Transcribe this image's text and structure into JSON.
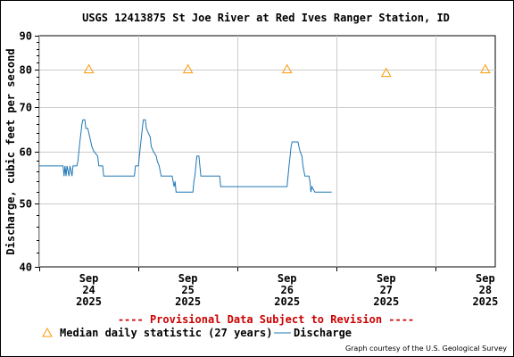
{
  "chart_data": {
    "type": "line",
    "title": "USGS 12413875 St Joe River at Red Ives Ranger Station, ID",
    "ylabel": "Discharge, cubic feet per second",
    "xlabel": "",
    "y_scale": "log",
    "ylim": [
      40,
      90
    ],
    "y_ticks": [
      40,
      50,
      60,
      70,
      80,
      90
    ],
    "y_tick_labels": [
      "40",
      "50",
      "60",
      "70",
      "80",
      "90"
    ],
    "x_range_days": [
      -0.5,
      4.1
    ],
    "x_ticks": [
      {
        "day": 0,
        "lines": [
          "Sep",
          "24",
          "2025"
        ]
      },
      {
        "day": 1,
        "lines": [
          "Sep",
          "25",
          "2025"
        ]
      },
      {
        "day": 2,
        "lines": [
          "Sep",
          "26",
          "2025"
        ]
      },
      {
        "day": 3,
        "lines": [
          "Sep",
          "27",
          "2025"
        ]
      },
      {
        "day": 4,
        "lines": [
          "Sep",
          "28",
          "2025"
        ]
      }
    ],
    "grid": true,
    "colors": {
      "discharge": "#1f77b4",
      "median": "#ff9900",
      "provisional": "#cc0000"
    },
    "series": [
      {
        "name": "Discharge",
        "style": "line",
        "points": [
          [
            -0.5,
            57
          ],
          [
            -0.26,
            57
          ],
          [
            -0.25,
            55
          ],
          [
            -0.24,
            57
          ],
          [
            -0.23,
            55
          ],
          [
            -0.22,
            57
          ],
          [
            -0.2,
            55
          ],
          [
            -0.19,
            57
          ],
          [
            -0.17,
            55
          ],
          [
            -0.16,
            57
          ],
          [
            -0.12,
            57
          ],
          [
            -0.11,
            58
          ],
          [
            -0.1,
            60
          ],
          [
            -0.09,
            62
          ],
          [
            -0.08,
            64
          ],
          [
            -0.07,
            66
          ],
          [
            -0.06,
            67
          ],
          [
            -0.04,
            67
          ],
          [
            -0.03,
            65
          ],
          [
            -0.01,
            65
          ],
          [
            0.0,
            64
          ],
          [
            0.02,
            62
          ],
          [
            0.03,
            61
          ],
          [
            0.05,
            60
          ],
          [
            0.09,
            59
          ],
          [
            0.1,
            57
          ],
          [
            0.14,
            57
          ],
          [
            0.15,
            55
          ],
          [
            0.46,
            55
          ],
          [
            0.47,
            57
          ],
          [
            0.5,
            57
          ],
          [
            0.51,
            59
          ],
          [
            0.52,
            61
          ],
          [
            0.53,
            63
          ],
          [
            0.54,
            65
          ],
          [
            0.55,
            67
          ],
          [
            0.57,
            67
          ],
          [
            0.58,
            65
          ],
          [
            0.6,
            64
          ],
          [
            0.62,
            63
          ],
          [
            0.63,
            61
          ],
          [
            0.65,
            60
          ],
          [
            0.68,
            59
          ],
          [
            0.69,
            58
          ],
          [
            0.71,
            57
          ],
          [
            0.73,
            55
          ],
          [
            0.84,
            55
          ],
          [
            0.85,
            54
          ],
          [
            0.86,
            53
          ],
          [
            0.87,
            54
          ],
          [
            0.88,
            52
          ],
          [
            1.05,
            52
          ],
          [
            1.06,
            54
          ],
          [
            1.07,
            55
          ],
          [
            1.08,
            57
          ],
          [
            1.09,
            59
          ],
          [
            1.11,
            59
          ],
          [
            1.12,
            57
          ],
          [
            1.13,
            55
          ],
          [
            1.32,
            55
          ],
          [
            1.33,
            53
          ],
          [
            2.0,
            53
          ],
          [
            2.01,
            55
          ],
          [
            2.02,
            57
          ],
          [
            2.03,
            59
          ],
          [
            2.04,
            61
          ],
          [
            2.05,
            62
          ],
          [
            2.11,
            62
          ],
          [
            2.12,
            61
          ],
          [
            2.13,
            60
          ],
          [
            2.15,
            59
          ],
          [
            2.16,
            57
          ],
          [
            2.18,
            55
          ],
          [
            2.22,
            55
          ],
          [
            2.23,
            54
          ],
          [
            2.24,
            52
          ],
          [
            2.25,
            53
          ],
          [
            2.28,
            52
          ],
          [
            2.45,
            52
          ]
        ]
      },
      {
        "name": "Median daily statistic (27 years)",
        "style": "triangle-marker",
        "points": [
          [
            0,
            80
          ],
          [
            1,
            80
          ],
          [
            2,
            80
          ],
          [
            3,
            79
          ],
          [
            4,
            80
          ]
        ]
      }
    ],
    "legend_position": "bottom-left",
    "annotations": [
      "---- Provisional Data Subject to Revision ----"
    ],
    "credit": "Graph courtesy of the U.S. Geological Survey"
  }
}
